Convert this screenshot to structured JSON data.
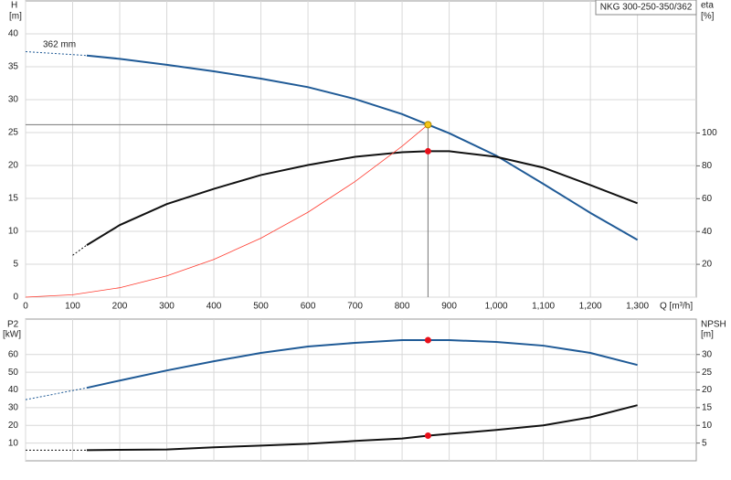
{
  "chart_data": [
    {
      "type": "line",
      "title": "NKG 300-250-350/362",
      "legend": "top-right",
      "ylabel": "H",
      "yunit": "[m]",
      "y2label": "eta",
      "y2unit": "[%]",
      "xlabel": "Q [m³/h]",
      "annotations": [
        "362 mm"
      ],
      "grid": true,
      "xlim": [
        0,
        1425
      ],
      "xticks": [
        0,
        100,
        200,
        300,
        400,
        500,
        600,
        700,
        800,
        900,
        {
          "value": 1000,
          "label": "1,000"
        },
        {
          "value": 1100,
          "label": "1,100"
        },
        {
          "value": 1200,
          "label": "1,200"
        },
        {
          "value": 1300,
          "label": "1,300"
        }
      ],
      "ylim": [
        0,
        45
      ],
      "yticks": [
        0,
        5,
        10,
        15,
        20,
        25,
        30,
        35,
        40
      ],
      "y2lim": [
        0,
        180.5
      ],
      "y2ticks": [
        20,
        40,
        60,
        80,
        100
      ],
      "series": [
        {
          "color": "#1f5a96",
          "dashed": true,
          "line_width": 1,
          "x": [
            0,
            130
          ],
          "values": [
            37.3,
            36.7
          ]
        },
        {
          "color": "#1f5a96",
          "line_width": 2,
          "x": [
            130,
            200,
            300,
            400,
            500,
            600,
            700,
            800,
            855,
            900,
            1000,
            1100,
            1200,
            1300
          ],
          "values": [
            36.7,
            36.2,
            35.3,
            34.3,
            33.2,
            31.9,
            30.1,
            27.8,
            26.2,
            24.9,
            21.5,
            17.2,
            12.8,
            8.7
          ]
        },
        {
          "color": "#111111",
          "dashed": true,
          "axis": "y2",
          "line_width": 1,
          "x": [
            100,
            130
          ],
          "values": [
            25.5,
            31.7
          ]
        },
        {
          "color": "#111111",
          "axis": "y2",
          "line_width": 2,
          "x": [
            130,
            200,
            300,
            400,
            500,
            600,
            700,
            800,
            855,
            900,
            1000,
            1100,
            1200,
            1300
          ],
          "values": [
            31.7,
            43.9,
            56.7,
            66,
            74.4,
            80.5,
            85.5,
            88.3,
            88.9,
            88.9,
            85.5,
            78.9,
            68.3,
            57.2
          ]
        },
        {
          "color": "#ff3b2f",
          "line_width": 0.8,
          "x": [
            0,
            100,
            200,
            300,
            400,
            500,
            600,
            700,
            800,
            855
          ],
          "values": [
            0,
            0.36,
            1.43,
            3.23,
            5.73,
            8.96,
            12.9,
            17.56,
            22.93,
            26.2
          ]
        }
      ],
      "markers": [
        {
          "x": 855,
          "y": 26.2,
          "color": "#f5c518",
          "guide": true
        },
        {
          "x": 855,
          "y": 88.9,
          "color": "#e8101a",
          "axis": "y2"
        }
      ]
    },
    {
      "type": "line",
      "ylabel": "P2",
      "yunit": "[kW]",
      "y2label": "NPSH",
      "y2unit": "[m]",
      "grid": true,
      "xlim": [
        0,
        1425
      ],
      "ylim": [
        0,
        80
      ],
      "yticks": [
        10,
        20,
        30,
        40,
        50,
        60
      ],
      "y2lim": [
        0,
        40
      ],
      "y2ticks": [
        5,
        10,
        15,
        20,
        25,
        30
      ],
      "series": [
        {
          "color": "#1f5a96",
          "dashed": true,
          "line_width": 1,
          "x": [
            0,
            130
          ],
          "values": [
            34.5,
            41.2
          ]
        },
        {
          "color": "#1f5a96",
          "line_width": 2,
          "x": [
            130,
            200,
            300,
            400,
            500,
            600,
            700,
            800,
            855,
            900,
            1000,
            1100,
            1200,
            1300
          ],
          "values": [
            41.2,
            45.3,
            51,
            56.2,
            60.9,
            64.5,
            66.6,
            68.1,
            68.1,
            68.1,
            67.1,
            65,
            60.9,
            54.1
          ]
        },
        {
          "color": "#111111",
          "dashed": true,
          "axis": "y2",
          "line_width": 1,
          "x": [
            0,
            130
          ],
          "values": [
            3.0,
            3.0
          ]
        },
        {
          "color": "#111111",
          "axis": "y2",
          "line_width": 2,
          "x": [
            130,
            200,
            300,
            400,
            500,
            600,
            700,
            800,
            855,
            900,
            1000,
            1100,
            1200,
            1300
          ],
          "values": [
            3.0,
            3.1,
            3.2,
            3.8,
            4.3,
            4.8,
            5.6,
            6.3,
            7.1,
            7.6,
            8.7,
            10,
            12.3,
            15.7
          ]
        }
      ],
      "markers": [
        {
          "x": 855,
          "y": 68.1,
          "color": "#e8101a"
        },
        {
          "x": 855,
          "y": 7.1,
          "color": "#e8101a",
          "axis": "y2"
        }
      ]
    }
  ]
}
